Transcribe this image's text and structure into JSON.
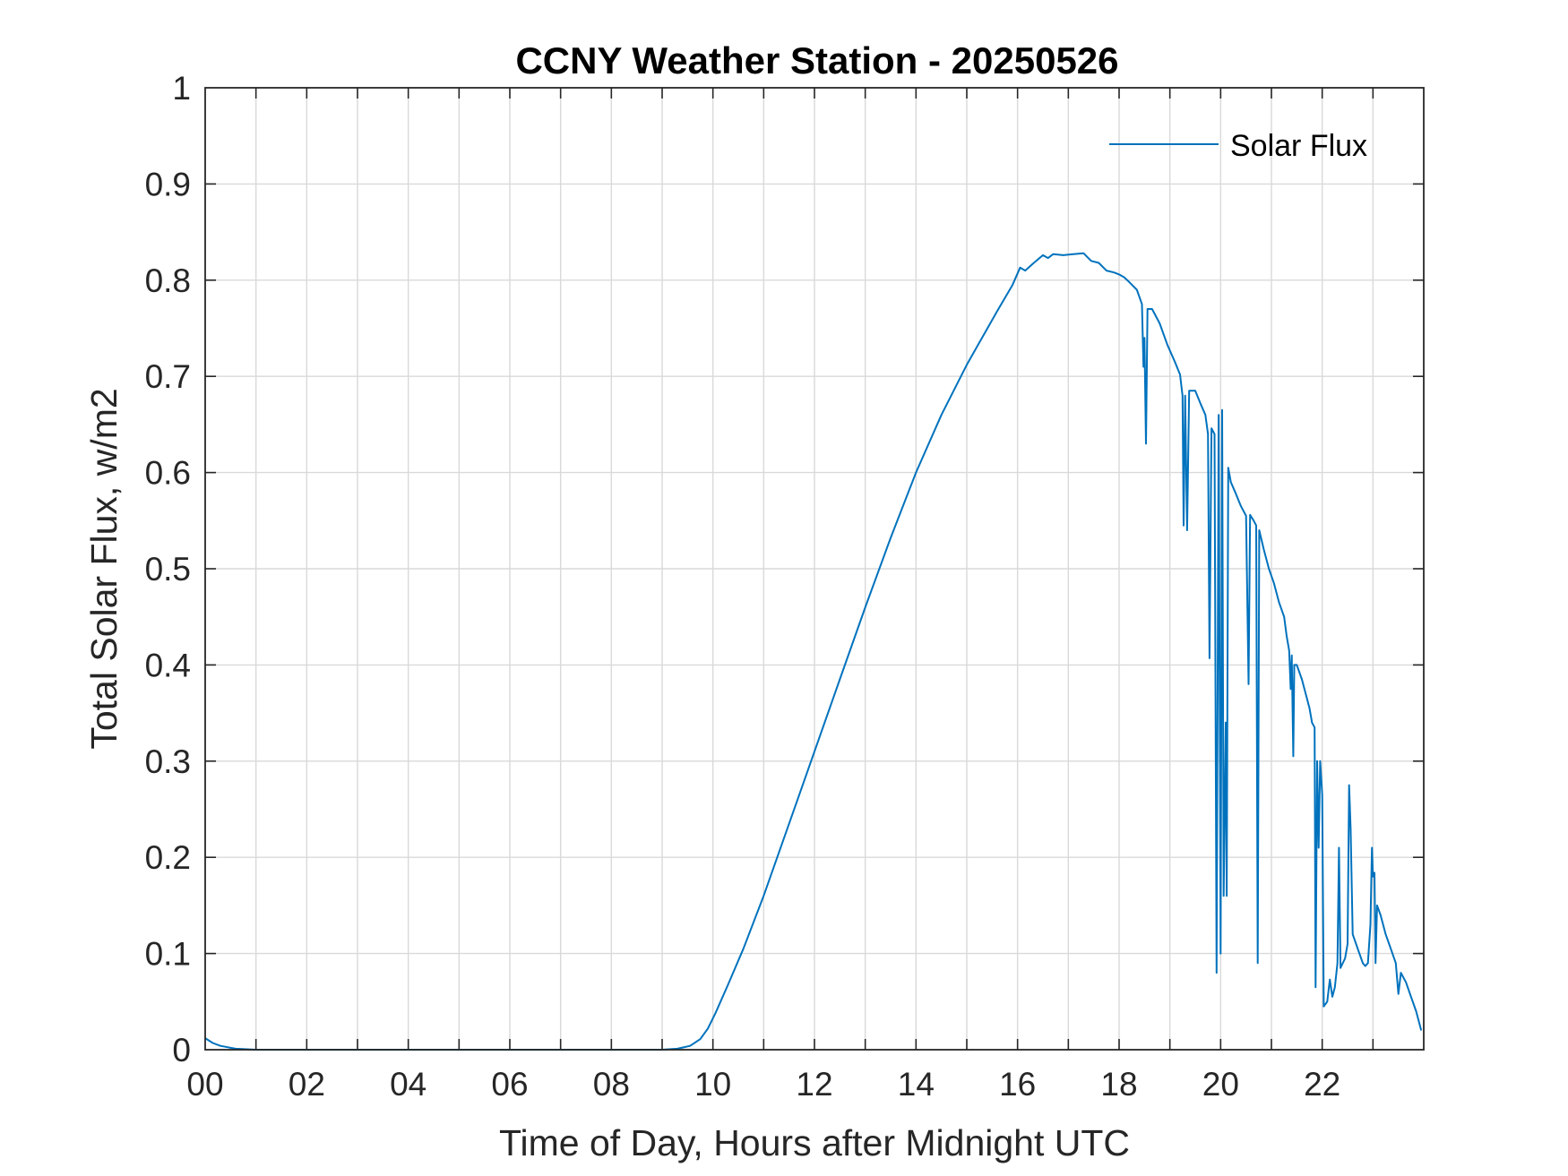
{
  "chart_data": {
    "type": "line",
    "title": "CCNY Weather Station - 20250526",
    "xlabel": "Time of Day, Hours after Midnight UTC",
    "ylabel": "Total Solar Flux, w/m2",
    "xlim": [
      0,
      24
    ],
    "ylim": [
      0,
      1
    ],
    "grid": true,
    "legend_position": "top-right",
    "xticks": [
      0,
      2,
      4,
      6,
      8,
      10,
      12,
      14,
      16,
      18,
      20,
      22
    ],
    "xtick_labels": [
      "00",
      "02",
      "04",
      "06",
      "08",
      "10",
      "12",
      "14",
      "16",
      "18",
      "20",
      "22"
    ],
    "yticks": [
      0,
      0.1,
      0.2,
      0.3,
      0.4,
      0.5,
      0.6,
      0.7,
      0.8,
      0.9,
      1
    ],
    "ytick_labels": [
      "0",
      "0.1",
      "0.2",
      "0.3",
      "0.4",
      "0.5",
      "0.6",
      "0.7",
      "0.8",
      "0.9",
      "1"
    ],
    "series": [
      {
        "name": "Solar Flux",
        "color": "#0072BD",
        "points": [
          [
            0,
            0.012
          ],
          [
            0.15,
            0.007
          ],
          [
            0.3,
            0.004
          ],
          [
            0.6,
            0.001
          ],
          [
            1,
            0
          ],
          [
            2,
            0
          ],
          [
            3,
            0
          ],
          [
            4,
            0
          ],
          [
            5,
            0
          ],
          [
            6,
            0
          ],
          [
            7,
            0
          ],
          [
            8,
            0
          ],
          [
            9,
            0
          ],
          [
            9.3,
            0.001
          ],
          [
            9.55,
            0.004
          ],
          [
            9.75,
            0.011
          ],
          [
            9.9,
            0.022
          ],
          [
            10.05,
            0.038
          ],
          [
            10.3,
            0.068
          ],
          [
            10.6,
            0.105
          ],
          [
            11,
            0.16
          ],
          [
            11.5,
            0.235
          ],
          [
            12,
            0.31
          ],
          [
            12.5,
            0.385
          ],
          [
            13,
            0.46
          ],
          [
            13.5,
            0.532
          ],
          [
            14,
            0.6
          ],
          [
            14.5,
            0.66
          ],
          [
            15,
            0.712
          ],
          [
            15.3,
            0.74
          ],
          [
            15.6,
            0.768
          ],
          [
            15.9,
            0.795
          ],
          [
            16.05,
            0.813
          ],
          [
            16.15,
            0.81
          ],
          [
            16.3,
            0.817
          ],
          [
            16.5,
            0.826
          ],
          [
            16.6,
            0.823
          ],
          [
            16.7,
            0.827
          ],
          [
            16.9,
            0.826
          ],
          [
            17.1,
            0.827
          ],
          [
            17.3,
            0.828
          ],
          [
            17.45,
            0.82
          ],
          [
            17.6,
            0.818
          ],
          [
            17.75,
            0.81
          ],
          [
            17.9,
            0.808
          ],
          [
            18.0,
            0.806
          ],
          [
            18.1,
            0.803
          ],
          [
            18.2,
            0.798
          ],
          [
            18.35,
            0.79
          ],
          [
            18.45,
            0.775
          ],
          [
            18.48,
            0.71
          ],
          [
            18.5,
            0.74
          ],
          [
            18.53,
            0.63
          ],
          [
            18.56,
            0.77
          ],
          [
            18.65,
            0.77
          ],
          [
            18.8,
            0.755
          ],
          [
            18.95,
            0.733
          ],
          [
            19.1,
            0.715
          ],
          [
            19.2,
            0.702
          ],
          [
            19.25,
            0.68
          ],
          [
            19.27,
            0.545
          ],
          [
            19.3,
            0.68
          ],
          [
            19.34,
            0.54
          ],
          [
            19.38,
            0.685
          ],
          [
            19.5,
            0.685
          ],
          [
            19.6,
            0.672
          ],
          [
            19.7,
            0.66
          ],
          [
            19.75,
            0.64
          ],
          [
            19.78,
            0.407
          ],
          [
            19.82,
            0.646
          ],
          [
            19.88,
            0.64
          ],
          [
            19.92,
            0.08
          ],
          [
            19.96,
            0.66
          ],
          [
            20.0,
            0.1
          ],
          [
            20.03,
            0.665
          ],
          [
            20.06,
            0.16
          ],
          [
            20.1,
            0.34
          ],
          [
            20.12,
            0.16
          ],
          [
            20.15,
            0.605
          ],
          [
            20.2,
            0.59
          ],
          [
            20.3,
            0.578
          ],
          [
            20.4,
            0.565
          ],
          [
            20.5,
            0.555
          ],
          [
            20.55,
            0.38
          ],
          [
            20.58,
            0.556
          ],
          [
            20.65,
            0.55
          ],
          [
            20.7,
            0.545
          ],
          [
            20.73,
            0.09
          ],
          [
            20.76,
            0.54
          ],
          [
            20.85,
            0.52
          ],
          [
            20.95,
            0.5
          ],
          [
            21.05,
            0.485
          ],
          [
            21.15,
            0.465
          ],
          [
            21.25,
            0.45
          ],
          [
            21.3,
            0.43
          ],
          [
            21.35,
            0.415
          ],
          [
            21.38,
            0.375
          ],
          [
            21.4,
            0.41
          ],
          [
            21.43,
            0.305
          ],
          [
            21.45,
            0.4
          ],
          [
            21.5,
            0.4
          ],
          [
            21.6,
            0.385
          ],
          [
            21.7,
            0.365
          ],
          [
            21.75,
            0.355
          ],
          [
            21.8,
            0.34
          ],
          [
            21.85,
            0.335
          ],
          [
            21.87,
            0.065
          ],
          [
            21.9,
            0.3
          ],
          [
            21.93,
            0.21
          ],
          [
            21.96,
            0.3
          ],
          [
            22.0,
            0.265
          ],
          [
            22.03,
            0.045
          ],
          [
            22.1,
            0.05
          ],
          [
            22.15,
            0.073
          ],
          [
            22.2,
            0.055
          ],
          [
            22.25,
            0.065
          ],
          [
            22.3,
            0.09
          ],
          [
            22.33,
            0.21
          ],
          [
            22.36,
            0.085
          ],
          [
            22.45,
            0.095
          ],
          [
            22.5,
            0.11
          ],
          [
            22.53,
            0.275
          ],
          [
            22.56,
            0.23
          ],
          [
            22.6,
            0.12
          ],
          [
            22.7,
            0.105
          ],
          [
            22.8,
            0.09
          ],
          [
            22.85,
            0.087
          ],
          [
            22.9,
            0.09
          ],
          [
            22.95,
            0.13
          ],
          [
            22.98,
            0.21
          ],
          [
            23.0,
            0.18
          ],
          [
            23.03,
            0.184
          ],
          [
            23.05,
            0.09
          ],
          [
            23.08,
            0.15
          ],
          [
            23.15,
            0.14
          ],
          [
            23.25,
            0.12
          ],
          [
            23.35,
            0.105
          ],
          [
            23.45,
            0.09
          ],
          [
            23.5,
            0.058
          ],
          [
            23.55,
            0.08
          ],
          [
            23.65,
            0.07
          ],
          [
            23.75,
            0.055
          ],
          [
            23.85,
            0.04
          ],
          [
            23.95,
            0.02
          ]
        ]
      }
    ]
  }
}
